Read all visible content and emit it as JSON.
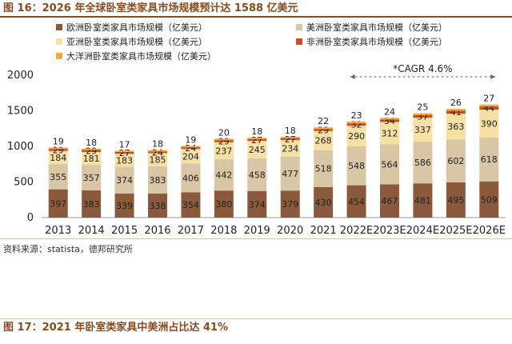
{
  "figure1_title": "图 16：2026 年全球卧室类家具市场规模预计达 1588 亿美元",
  "figure2_title": "图 17：2021 年卧室类家具中美洲占比达 41%",
  "source_text": "资料来源：statista，德邦研究所",
  "chart_data": {
    "type": "bar",
    "stacked": true,
    "title": "",
    "xlabel": "",
    "ylabel": "",
    "ylim": [
      0,
      2000
    ],
    "yticks": [
      0,
      500,
      1000,
      1500,
      2000
    ],
    "categories": [
      "2013",
      "2014",
      "2015",
      "2016",
      "2017",
      "2018",
      "2019",
      "2020",
      "2021",
      "2022E",
      "2023E",
      "2024E",
      "2025E",
      "2026E"
    ],
    "series": [
      {
        "name": "欧洲卧室类家具市场规模（亿美元）",
        "color": "#8b5a3c",
        "values": [
          397,
          383,
          339,
          338,
          354,
          380,
          374,
          379,
          430,
          454,
          467,
          481,
          495,
          509
        ]
      },
      {
        "name": "美洲卧室类家具市场规模（亿美元）",
        "color": "#d8c6a4",
        "values": [
          355,
          357,
          374,
          383,
          406,
          442,
          458,
          477,
          518,
          548,
          564,
          586,
          602,
          618
        ]
      },
      {
        "name": "亚洲卧室类家具市场规模（亿美元）",
        "color": "#f7e0a3",
        "values": [
          184,
          181,
          183,
          185,
          204,
          237,
          245,
          234,
          268,
          290,
          312,
          337,
          363,
          390
        ]
      },
      {
        "name": "非洲卧室类家具市场规模（亿美元）",
        "color": "#c8521e",
        "values": [
          29,
          29,
          27,
          24,
          24,
          29,
          27,
          27,
          29,
          32,
          34,
          37,
          41,
          44
        ]
      },
      {
        "name": "大洋洲卧室类家具市场规模（亿美元）",
        "color": "#f4a93c",
        "values": [
          19,
          18,
          17,
          18,
          19,
          20,
          18,
          18,
          22,
          23,
          24,
          25,
          26,
          27
        ]
      }
    ],
    "annotations": [
      {
        "text": "*CAGR 4.6%",
        "from": "2022E",
        "to": "2026E"
      }
    ]
  }
}
